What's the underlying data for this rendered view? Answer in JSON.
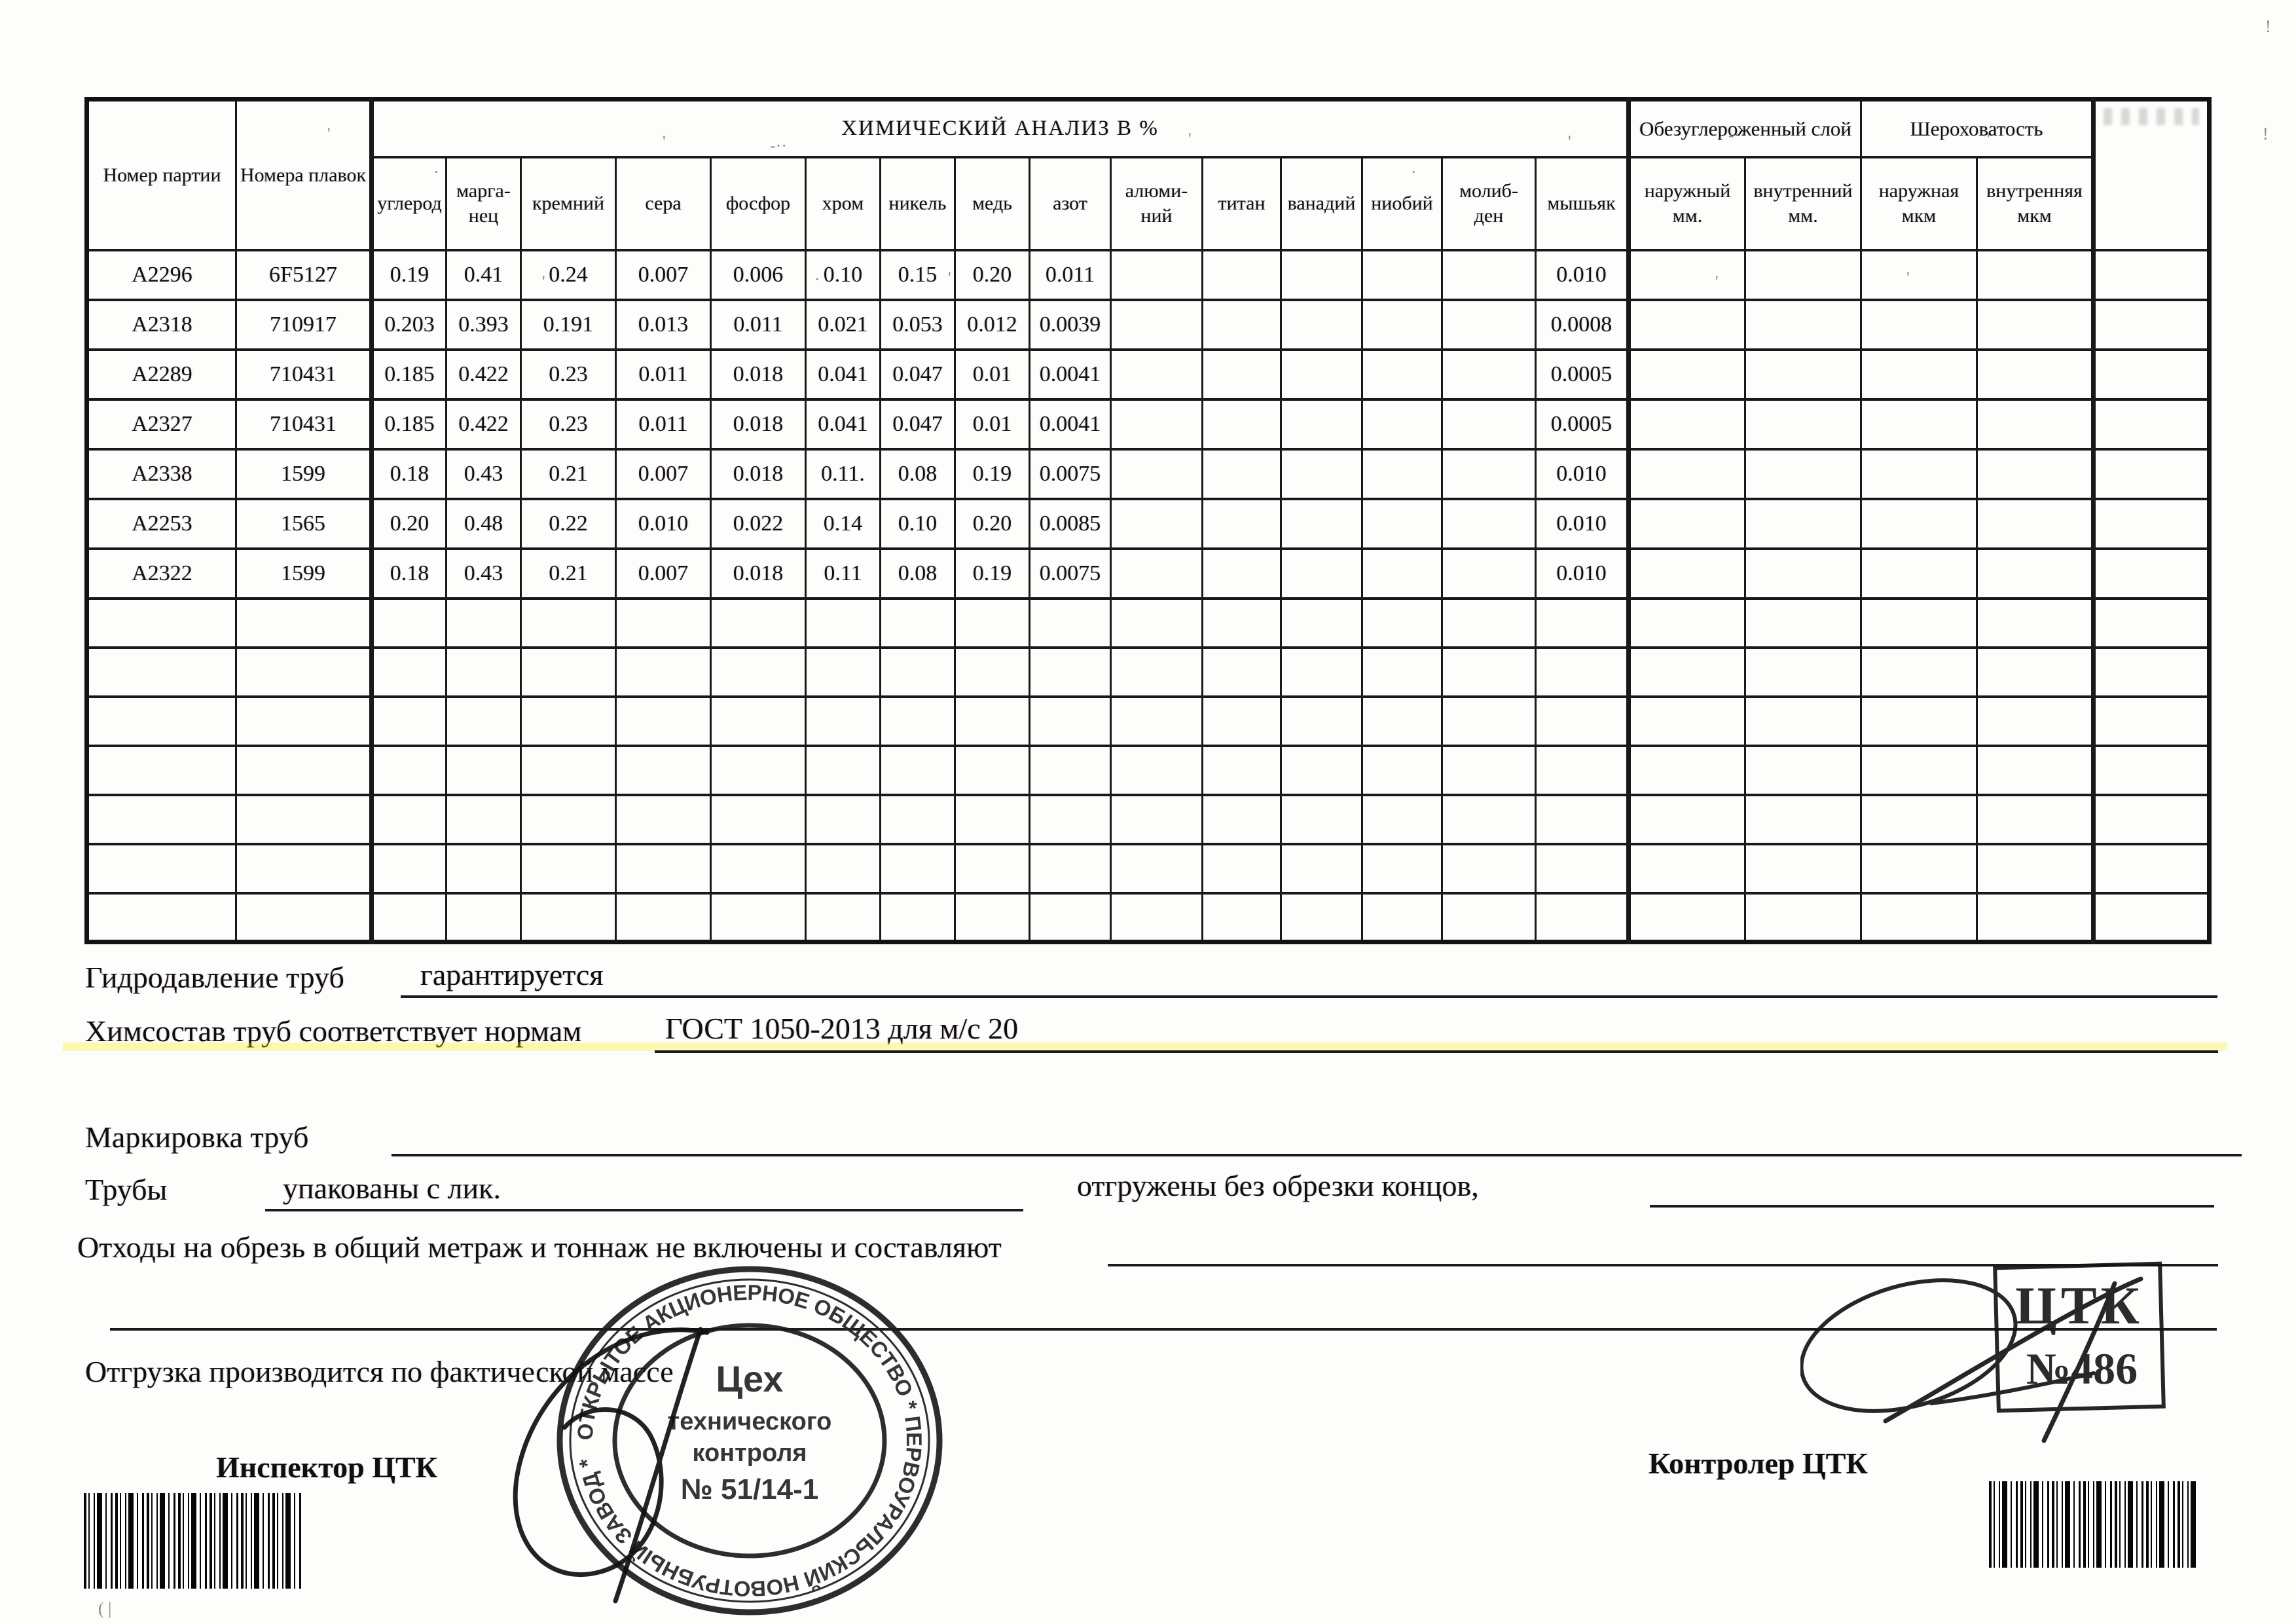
{
  "table": {
    "col_party": "Номер партии",
    "col_heats": "Номера плавок",
    "group_chem": "ХИМИЧЕСКИЙ АНАЛИЗ  В  %",
    "elements": [
      "углерод",
      "марга-нец",
      "кремний",
      "сера",
      "фосфор",
      "хром",
      "никель",
      "медь",
      "азот",
      "алюми-ний",
      "титан",
      "ванадий",
      "ниобий",
      "молиб-ден",
      "мышьяк"
    ],
    "group_decarb": "Обезуглероженный слой",
    "sub_decarb": [
      "наружный мм.",
      "внутренний мм."
    ],
    "group_rough": "Шероховатость",
    "sub_rough": [
      "наружная мкм",
      "внутренняя мкм"
    ],
    "rows": [
      {
        "party": "А2296",
        "heat": "6F5127",
        "values": [
          "0.19",
          "0.41",
          "0.24",
          "0.007",
          "0.006",
          "0.10",
          "0.15",
          "0.20",
          "0.011",
          "",
          "",
          "",
          "",
          "",
          "0.010"
        ]
      },
      {
        "party": "А2318",
        "heat": "710917",
        "values": [
          "0.203",
          "0.393",
          "0.191",
          "0.013",
          "0.011",
          "0.021",
          "0.053",
          "0.012",
          "0.0039",
          "",
          "",
          "",
          "",
          "",
          "0.0008"
        ]
      },
      {
        "party": "А2289",
        "heat": "710431",
        "values": [
          "0.185",
          "0.422",
          "0.23",
          "0.011",
          "0.018",
          "0.041",
          "0.047",
          "0.01",
          "0.0041",
          "",
          "",
          "",
          "",
          "",
          "0.0005"
        ]
      },
      {
        "party": "А2327",
        "heat": "710431",
        "values": [
          "0.185",
          "0.422",
          "0.23",
          "0.011",
          "0.018",
          "0.041",
          "0.047",
          "0.01",
          "0.0041",
          "",
          "",
          "",
          "",
          "",
          "0.0005"
        ]
      },
      {
        "party": "А2338",
        "heat": "1599",
        "values": [
          "0.18",
          "0.43",
          "0.21",
          "0.007",
          "0.018",
          "0.11.",
          "0.08",
          "0.19",
          "0.0075",
          "",
          "",
          "",
          "",
          "",
          "0.010"
        ]
      },
      {
        "party": "А2253",
        "heat": "1565",
        "values": [
          "0.20",
          "0.48",
          "0.22",
          "0.010",
          "0.022",
          "0.14",
          "0.10",
          "0.20",
          "0.0085",
          "",
          "",
          "",
          "",
          "",
          "0.010"
        ]
      },
      {
        "party": "А2322",
        "heat": "1599",
        "values": [
          "0.18",
          "0.43",
          "0.21",
          "0.007",
          "0.018",
          "0.11",
          "0.08",
          "0.19",
          "0.0075",
          "",
          "",
          "",
          "",
          "",
          "0.010"
        ]
      }
    ],
    "empty_rows": 7
  },
  "fields": {
    "hydro_label": "Гидродавление труб",
    "hydro_value": "гарантируется",
    "chem_label": "Химсостав труб соответствует нормам",
    "chem_value": "ГОСТ 1050-2013 для м/с 20",
    "marking_label": "Маркировка труб",
    "pipes_label": "Трубы",
    "pipes_value": "упакованы с лик.",
    "shipped_note": "отгружены без обрезки концов,",
    "waste_note": "Отходы на обрезь в общий метраж и тоннаж не включены и составляют",
    "shipping_note": "Отгрузка производится по фактической массе",
    "inspector_label": "Инспектор ЦТК",
    "controller_label": "Контролер ЦТК"
  },
  "stamps": {
    "round": {
      "ring_top": "ОТКРЫТОЕ АКЦИОНЕРНОЕ ОБЩЕСТВО",
      "ring_bottom": "ПЕРВОУРАЛЬСКИЙ НОВОТРУБНЫЙ ЗАВОД",
      "center": [
        "Цех",
        "технического",
        "контроля",
        "№ 51/14-1"
      ]
    },
    "corner": {
      "line1": "ЦТК",
      "line2": "№486"
    }
  }
}
